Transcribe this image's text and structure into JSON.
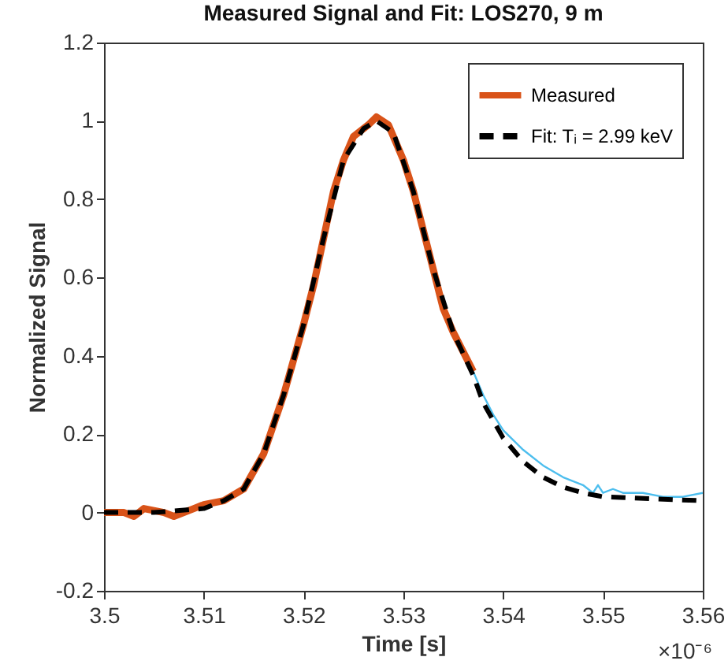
{
  "chart_data": {
    "type": "line",
    "title": "Measured Signal and Fit: LOS270, 9 m",
    "xlabel": "Time [s]",
    "ylabel": "Normalized Signal",
    "xlim": [
      3.5,
      3.56
    ],
    "xticks": [
      3.5,
      3.51,
      3.52,
      3.53,
      3.54,
      3.55,
      3.56
    ],
    "ylim": [
      -0.2,
      1.2
    ],
    "yticks": [
      -0.2,
      0,
      0.2,
      0.4,
      0.6,
      0.8,
      1,
      1.2
    ],
    "grid": false,
    "legend": "top right",
    "annotations": [
      "×10⁻⁶"
    ],
    "series": [
      {
        "color": "#4dbeee",
        "line_style": "solid",
        "x": [
          3.537,
          3.538,
          3.539,
          3.54,
          3.542,
          3.544,
          3.546,
          3.547,
          3.548,
          3.549,
          3.5495,
          3.55,
          3.551,
          3.552,
          3.554,
          3.556,
          3.558,
          3.56
        ],
        "values": [
          0.36,
          0.3,
          0.25,
          0.21,
          0.16,
          0.12,
          0.09,
          0.08,
          0.07,
          0.05,
          0.07,
          0.05,
          0.06,
          0.05,
          0.05,
          0.04,
          0.04,
          0.05
        ]
      },
      {
        "name": "Measured",
        "color": "#d95319",
        "line_style": "solid",
        "x": [
          3.5,
          3.502,
          3.503,
          3.504,
          3.506,
          3.507,
          3.509,
          3.51,
          3.512,
          3.514,
          3.516,
          3.518,
          3.52,
          3.521,
          3.522,
          3.523,
          3.524,
          3.525,
          3.5265,
          3.5273,
          3.5285,
          3.53,
          3.531,
          3.532,
          3.533,
          3.534,
          3.535,
          3.536,
          3.537
        ],
        "values": [
          0,
          0,
          -0.01,
          0.01,
          0,
          -0.01,
          0.01,
          0.02,
          0.03,
          0.06,
          0.15,
          0.3,
          0.48,
          0.58,
          0.7,
          0.82,
          0.9,
          0.96,
          0.99,
          1.01,
          0.99,
          0.9,
          0.82,
          0.72,
          0.62,
          0.52,
          0.46,
          0.41,
          0.36
        ]
      },
      {
        "name": "Fit: Tᵢ = 2.99 keV",
        "color": "#000000",
        "line_style": "dashed",
        "x": [
          3.5,
          3.505,
          3.51,
          3.512,
          3.514,
          3.516,
          3.518,
          3.52,
          3.522,
          3.524,
          3.526,
          3.5273,
          3.529,
          3.531,
          3.533,
          3.535,
          3.537,
          3.538,
          3.54,
          3.542,
          3.544,
          3.546,
          3.548,
          3.55,
          3.555,
          3.56
        ],
        "values": [
          0,
          0,
          0.01,
          0.03,
          0.06,
          0.15,
          0.3,
          0.48,
          0.7,
          0.9,
          0.98,
          1.0,
          0.97,
          0.82,
          0.62,
          0.46,
          0.35,
          0.28,
          0.19,
          0.13,
          0.09,
          0.065,
          0.05,
          0.04,
          0.035,
          0.03
        ]
      }
    ]
  }
}
